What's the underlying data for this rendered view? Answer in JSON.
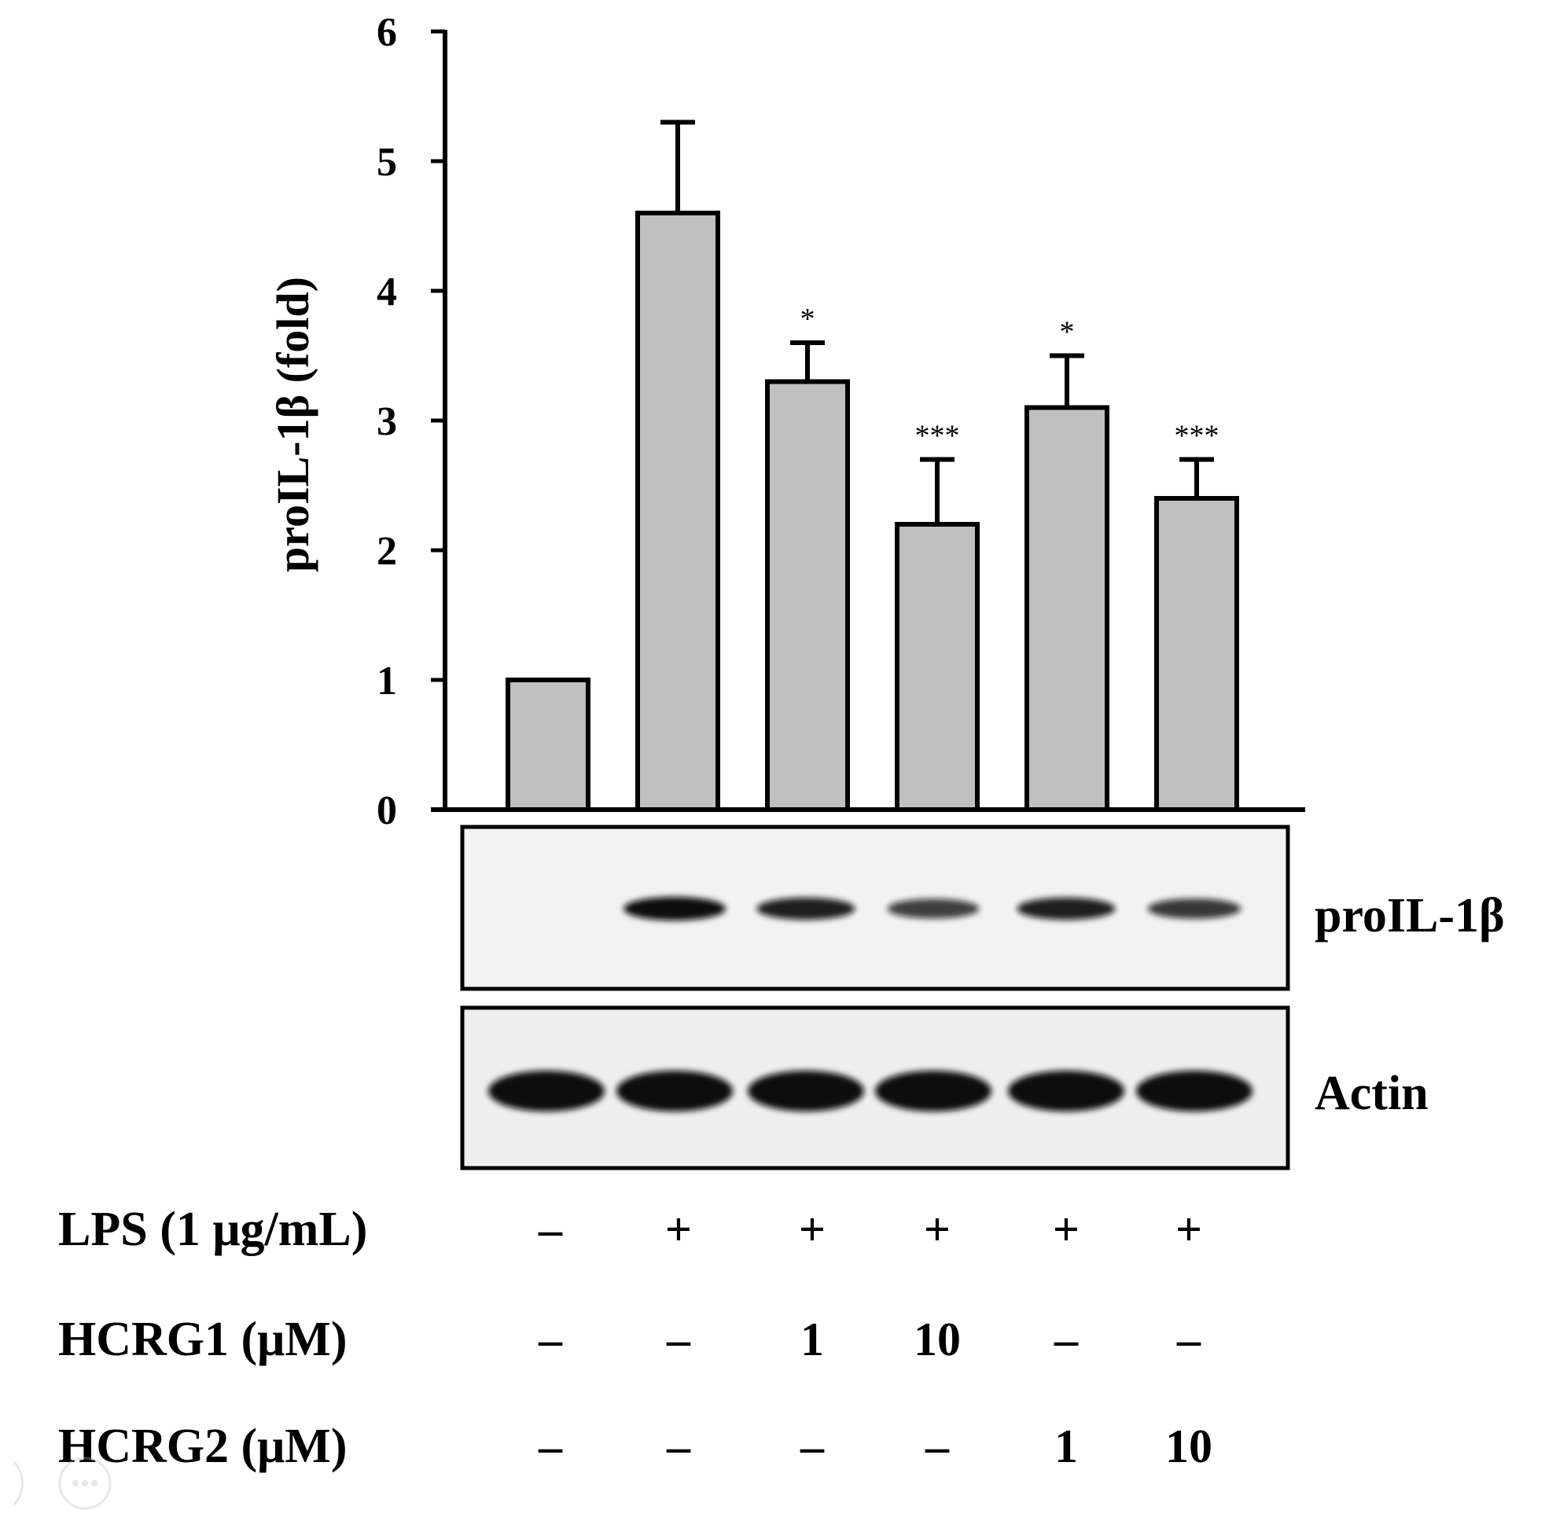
{
  "chart_data": {
    "type": "bar",
    "ylabel": "proIL-1β (fold)",
    "ylim": [
      0,
      6
    ],
    "yticks": [
      0,
      1,
      2,
      3,
      4,
      5,
      6
    ],
    "grid": false,
    "series": [
      {
        "values": [
          1.0,
          4.6,
          3.3,
          2.2,
          3.1,
          2.4
        ],
        "errors": [
          0.0,
          0.7,
          0.3,
          0.5,
          0.4,
          0.3
        ],
        "significance": [
          "",
          "",
          "*",
          "***",
          "*",
          "***"
        ],
        "color": "#c0c0c0"
      }
    ]
  },
  "blots": [
    {
      "label": "proIL-1β",
      "band_intensity": [
        0.0,
        1.0,
        0.85,
        0.6,
        0.85,
        0.65
      ]
    },
    {
      "label": "Actin",
      "band_intensity": [
        1.0,
        1.0,
        1.0,
        1.0,
        1.0,
        1.0
      ]
    }
  ],
  "conditions": [
    {
      "label": "LPS (1 μg/mL)",
      "values": [
        "–",
        "+",
        "+",
        "+",
        "+",
        "+"
      ]
    },
    {
      "label": "HCRG1 (μM)",
      "values": [
        "–",
        "–",
        "1",
        "10",
        "–",
        "–"
      ]
    },
    {
      "label": "HCRG2 (μM)",
      "values": [
        "–",
        "–",
        "–",
        "–",
        "1",
        "10"
      ]
    }
  ]
}
